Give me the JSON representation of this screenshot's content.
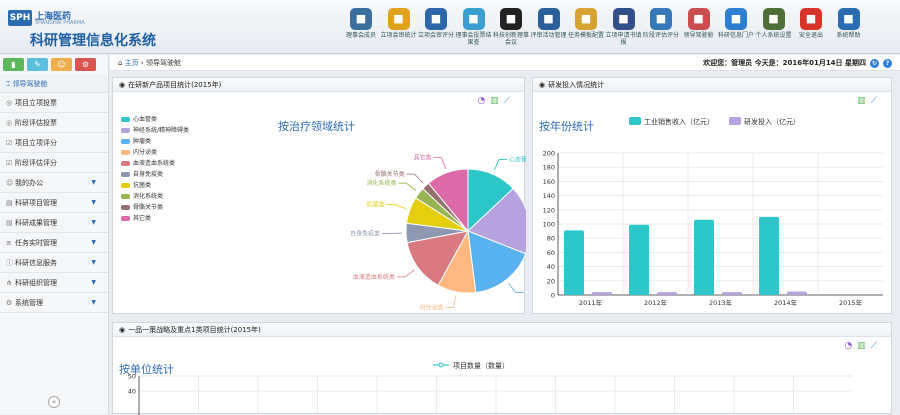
{
  "logo": {
    "abbr": "SPH",
    "cn": "上海医药",
    "en": "SHANGHAI PHARMA"
  },
  "app_title": "科研管理信息化系统",
  "toolbar": [
    {
      "label": "理事会成员",
      "icon": "people-icon",
      "color": "#3b6f9e"
    },
    {
      "label": "立项会审统计",
      "icon": "radiation-icon",
      "color": "#e0a21c"
    },
    {
      "label": "立项会审评分",
      "icon": "chat-icon",
      "color": "#2c66a8"
    },
    {
      "label": "理事会投票结果查",
      "icon": "form-icon",
      "color": "#3a9fd0"
    },
    {
      "label": "科技创新理事会议",
      "icon": "check-icon",
      "color": "#222222"
    },
    {
      "label": "评审活动管理",
      "icon": "team-icon",
      "color": "#2a5f9a"
    },
    {
      "label": "任务模板配置",
      "icon": "clipboard-icon",
      "color": "#d8a233"
    },
    {
      "label": "立项申请书填报",
      "icon": "monitor-icon",
      "color": "#34508a"
    },
    {
      "label": "阶段评估评分",
      "icon": "book-icon",
      "color": "#3579b8"
    },
    {
      "label": "领导驾驶舱",
      "icon": "chart-icon",
      "color": "#c94e4e"
    },
    {
      "label": "科研信息门户",
      "icon": "home-icon",
      "color": "#2c7fd1"
    },
    {
      "label": "个人系统设置",
      "icon": "user-icon",
      "color": "#4f6f39"
    },
    {
      "label": "安全退出",
      "icon": "shield-icon",
      "color": "#d9342b"
    },
    {
      "label": "系统帮助",
      "icon": "help-icon",
      "color": "#2b6bb2"
    }
  ],
  "sidebar": {
    "head": "领导驾驶舱",
    "items": [
      {
        "label": "项目立项投票",
        "icon": "check-circle-icon",
        "dropdown": false
      },
      {
        "label": "阶段评估投票",
        "icon": "check-circle-icon",
        "dropdown": false
      },
      {
        "label": "项目立项评分",
        "icon": "checkbox-icon",
        "dropdown": false
      },
      {
        "label": "阶段评估评分",
        "icon": "checkbox-icon",
        "dropdown": false
      },
      {
        "label": "我的办公",
        "icon": "user-icon",
        "dropdown": true
      },
      {
        "label": "科研项目管理",
        "icon": "folder-icon",
        "dropdown": true
      },
      {
        "label": "科研成果管理",
        "icon": "folder-icon",
        "dropdown": true
      },
      {
        "label": "任务实时管理",
        "icon": "list-icon",
        "dropdown": true
      },
      {
        "label": "科研信息服务",
        "icon": "info-icon",
        "dropdown": true
      },
      {
        "label": "科研组织管理",
        "icon": "org-icon",
        "dropdown": true
      },
      {
        "label": "系统管理",
        "icon": "gears-icon",
        "dropdown": true
      }
    ]
  },
  "breadcrumb": {
    "home": "主页",
    "sep": "›",
    "current": "领导驾驶舱"
  },
  "welcome": "欢迎您：管理员 今天是：2016年01月14日 星期四",
  "panels": {
    "pie": {
      "title": "在研新产品项目统计(2015年)"
    },
    "bar": {
      "title": "研发投入情况统计"
    },
    "line": {
      "title": "一品一策战略及重点1类项目统计(2015年)"
    }
  },
  "chart_data": [
    {
      "type": "pie",
      "title": "按治疗领域统计",
      "categories": [
        "心血管类",
        "神经系统/精神障碍类",
        "肿瘤类",
        "内分泌类",
        "血液造血系统类",
        "自身免疫类",
        "抗菌类",
        "消化系统类",
        "骨骼关节类",
        "其它类"
      ],
      "values": [
        13,
        18,
        17,
        10,
        14,
        5,
        7,
        3,
        2,
        11
      ],
      "colors": [
        "#2ec7c9",
        "#b6a2de",
        "#5ab1ef",
        "#ffb980",
        "#d87a80",
        "#8d98b3",
        "#e5cf0d",
        "#97b552",
        "#95706d",
        "#dc69aa"
      ]
    },
    {
      "type": "bar",
      "title": "按年份统计",
      "categories": [
        "2011年",
        "2012年",
        "2013年",
        "2014年",
        "2015年"
      ],
      "series": [
        {
          "name": "工业销售收入（亿元）",
          "values": [
            91,
            99,
            106,
            110,
            0
          ],
          "color": "#2ec7c9"
        },
        {
          "name": "研发投入（亿元）",
          "values": [
            4,
            4,
            4,
            5,
            0
          ],
          "color": "#b6a2de"
        }
      ],
      "ylim": [
        0,
        200
      ],
      "yticks": [
        0,
        20,
        40,
        60,
        80,
        100,
        120,
        140,
        160,
        180,
        200
      ]
    },
    {
      "type": "line",
      "title": "按单位统计",
      "series": [
        {
          "name": "项目数量（数量）",
          "color": "#2ec7c9"
        }
      ],
      "yticks_visible": [
        50,
        40
      ]
    }
  ]
}
